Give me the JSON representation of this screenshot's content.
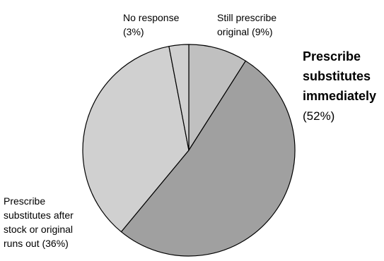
{
  "chart_data": {
    "type": "pie",
    "start": "12 o'clock",
    "direction": "clockwise",
    "slices": [
      {
        "label": "Still prescribe original",
        "value": 9,
        "value_label": "(9%)",
        "color": "#c0c0c0",
        "label_lines": [
          "Still prescribe",
          "original (9%)"
        ]
      },
      {
        "label": "Prescribe substitutes immediately",
        "value": 52,
        "value_label": "(52%)",
        "color": "#a0a0a0",
        "label_lines": [
          "Prescribe",
          "substitutes",
          "immediately"
        ]
      },
      {
        "label": "Prescribe substitutes after stock or original runs out",
        "value": 36,
        "value_label": "(36%)",
        "color": "#d0d0d0",
        "label_lines": [
          "Prescribe",
          "substitutes after",
          "stock or original",
          "runs out (36%)"
        ]
      },
      {
        "label": "No response",
        "value": 3,
        "value_label": "(3%)",
        "color": "#d0d0d0",
        "label_lines": [
          "No response",
          "(3%)"
        ]
      }
    ]
  }
}
